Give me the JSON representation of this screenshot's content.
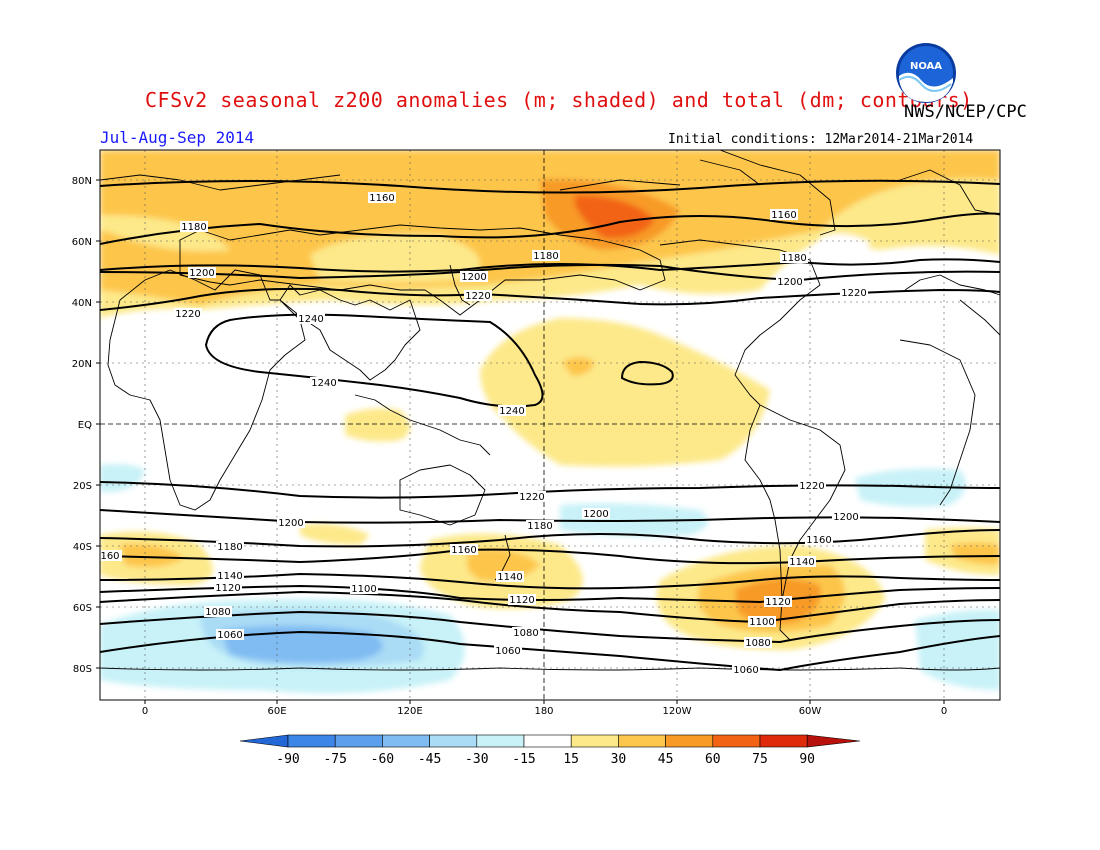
{
  "title": "CFSv2 seasonal z200 anomalies (m; shaded) and total (dm; contours)",
  "agency": "NWS/NCEP/CPC",
  "season": "Jul-Aug-Sep 2014",
  "initial_conditions": "Initial conditions: 12Mar2014-21Mar2014",
  "logo": {
    "icon": "noaa-logo-icon",
    "text": "NOAA"
  },
  "lat_labels": [
    "80N",
    "60N",
    "40N",
    "20N",
    "EQ",
    "20S",
    "40S",
    "60S",
    "80S"
  ],
  "lon_labels": [
    "0",
    "60E",
    "120E",
    "180",
    "120W",
    "60W",
    "0"
  ],
  "colorbar": {
    "labels": [
      "-90",
      "-75",
      "-60",
      "-45",
      "-30",
      "-15",
      "15",
      "30",
      "45",
      "60",
      "75",
      "90"
    ],
    "colors": [
      "#2468d8",
      "#3c86e8",
      "#5aa0ec",
      "#80bcf2",
      "#aadcf6",
      "#c8f2f8",
      "#ffffff",
      "#fde98a",
      "#fdc64c",
      "#f89a26",
      "#f26414",
      "#e02a0c",
      "#b8100a"
    ]
  },
  "contour_labels": [
    "1160",
    "1160",
    "1180",
    "1180",
    "1180",
    "1200",
    "1200",
    "1200",
    "1220",
    "1220",
    "1220",
    "1240",
    "1240",
    "1240",
    "1220",
    "1220",
    "1200",
    "1200",
    "1200",
    "1180",
    "1180",
    "1160",
    "160",
    "1160",
    "1140",
    "1140",
    "1140",
    "1120",
    "1120",
    "1120",
    "1100",
    "1100",
    "1080",
    "1080",
    "1080",
    "1060",
    "1060",
    "1060"
  ]
}
